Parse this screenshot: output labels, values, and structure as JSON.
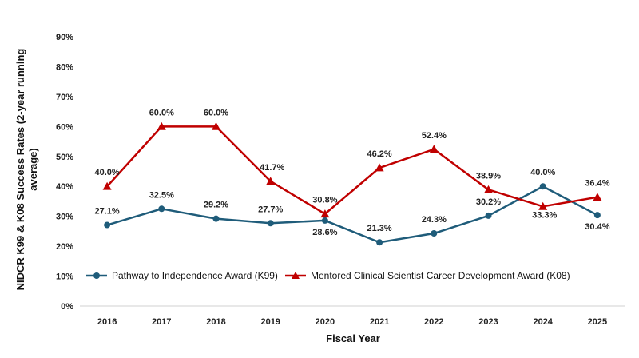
{
  "chart_data": {
    "type": "line",
    "title": "",
    "xlabel": "Fiscal Year",
    "ylabel_lines": [
      "NIDCR K99 & K08 Success Rates (2-year running",
      "average)"
    ],
    "categories": [
      "2016",
      "2017",
      "2018",
      "2019",
      "2020",
      "2021",
      "2022",
      "2023",
      "2024",
      "2025"
    ],
    "ylim": [
      0,
      90
    ],
    "yticks": [
      0,
      10,
      20,
      30,
      40,
      50,
      60,
      70,
      80,
      90
    ],
    "ytick_labels": [
      "0%",
      "10%",
      "20%",
      "30%",
      "40%",
      "50%",
      "60%",
      "70%",
      "80%",
      "90%"
    ],
    "grid": false,
    "legend_position": "bottom-inside",
    "series": [
      {
        "name": "Pathway to Independence Award (K99)",
        "color": "#1f5c7a",
        "marker": "circle",
        "values": [
          27.1,
          32.5,
          29.2,
          27.7,
          28.6,
          21.3,
          24.3,
          30.2,
          40.0,
          30.4
        ],
        "labels": [
          "27.1%",
          "32.5%",
          "29.2%",
          "27.7%",
          "28.6%",
          "21.3%",
          "24.3%",
          "30.2%",
          "40.0%",
          "30.4%"
        ]
      },
      {
        "name": "Mentored Clinical Scientist Career Development Award (K08)",
        "color": "#c00000",
        "marker": "triangle",
        "values": [
          40.0,
          60.0,
          60.0,
          41.7,
          30.8,
          46.2,
          52.4,
          38.9,
          33.3,
          36.4
        ],
        "labels": [
          "40.0%",
          "60.0%",
          "60.0%",
          "41.7%",
          "30.8%",
          "46.2%",
          "52.4%",
          "38.9%",
          "33.3%",
          "36.4%"
        ]
      }
    ]
  }
}
